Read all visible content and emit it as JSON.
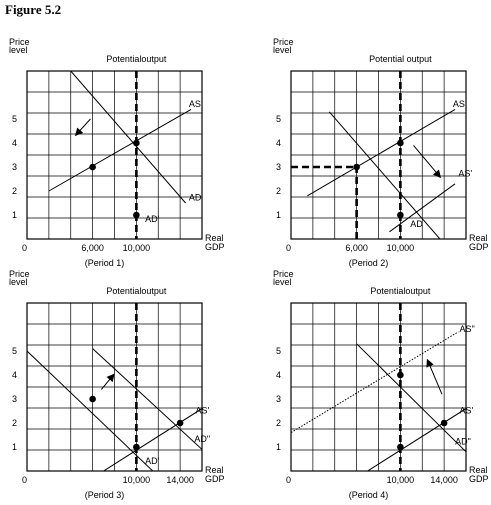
{
  "figure_title": "Figure 5.2",
  "chart_data": [
    {
      "type": "line",
      "caption": "(Period 1)",
      "potential_output_label": "Potentialoutput",
      "ylabel": [
        "Price",
        "level"
      ],
      "xlabel": [
        "Real",
        "GDP"
      ],
      "xlim": [
        0,
        16000
      ],
      "ylim": [
        0,
        7
      ],
      "y_ticks": [
        1,
        2,
        3,
        4,
        5
      ],
      "x_ticks": [
        {
          "value": 0,
          "label": "0"
        },
        {
          "value": 6000,
          "label": "6,000"
        },
        {
          "value": 10000,
          "label": "10,000"
        }
      ],
      "grid": true,
      "potential_output": 10000,
      "series": [
        {
          "name": "AS",
          "x": [
            2000,
            15000
          ],
          "y": [
            2,
            5.4
          ],
          "label_at": [
            14800,
            5.5
          ],
          "style": "solid"
        },
        {
          "name": "AD",
          "x": [
            4000,
            14500
          ],
          "y": [
            7,
            1.5
          ],
          "label_at": [
            14800,
            1.6
          ],
          "style": "solid"
        }
      ],
      "points": [
        {
          "x": 6000,
          "y": 3
        },
        {
          "x": 10000,
          "y": 4
        },
        {
          "x": 10000,
          "y": 1
        }
      ],
      "point_labels": [
        {
          "text": "AD'",
          "at": [
            10800,
            0.7
          ]
        }
      ],
      "guides": [],
      "arrows": [
        {
          "from": [
            5800,
            5.0
          ],
          "to": [
            4500,
            4.35
          ]
        }
      ]
    },
    {
      "type": "line",
      "caption": "(Period 2)",
      "potential_output_label": "Potential output",
      "ylabel": [
        "Price",
        "level"
      ],
      "xlabel": [
        "Real",
        "GDP"
      ],
      "xlim": [
        0,
        16000
      ],
      "ylim": [
        0,
        7
      ],
      "y_ticks": [
        1,
        2,
        3,
        4,
        5
      ],
      "x_ticks": [
        {
          "value": 0,
          "label": "0"
        },
        {
          "value": 6000,
          "label": "6,000"
        },
        {
          "value": 10000,
          "label": "10,000"
        }
      ],
      "grid": true,
      "potential_output": 10000,
      "series": [
        {
          "name": "AS",
          "x": [
            1500,
            15000
          ],
          "y": [
            1.8,
            5.4
          ],
          "label_at": [
            14800,
            5.5
          ],
          "style": "solid"
        },
        {
          "name": "AS'",
          "x": [
            9000,
            15000
          ],
          "y": [
            0.3,
            2.3
          ],
          "label_at": [
            15300,
            2.6
          ],
          "style": "solid"
        },
        {
          "name": "AD",
          "x": [
            3500,
            14000
          ],
          "y": [
            5.3,
            -0.2
          ],
          "label_at": [
            10900,
            0.5
          ],
          "style": "solid"
        }
      ],
      "points": [
        {
          "x": 6000,
          "y": 3
        },
        {
          "x": 10000,
          "y": 4
        },
        {
          "x": 10000,
          "y": 1
        }
      ],
      "point_labels": [],
      "guides": [
        {
          "from": [
            0,
            3
          ],
          "to": [
            6000,
            3
          ]
        },
        {
          "from": [
            6000,
            0
          ],
          "to": [
            6000,
            3
          ]
        }
      ],
      "arrows": [
        {
          "from": [
            11200,
            3.9
          ],
          "to": [
            13600,
            2.6
          ]
        }
      ]
    },
    {
      "type": "line",
      "caption": "(Period 3)",
      "potential_output_label": "Potentialoutput",
      "ylabel": [
        "Price",
        "level"
      ],
      "xlabel": [
        "Real",
        "GDP"
      ],
      "xlim": [
        0,
        16000
      ],
      "ylim": [
        0,
        7
      ],
      "y_ticks": [
        1,
        2,
        3,
        4,
        5
      ],
      "x_ticks": [
        {
          "value": 0,
          "label": "0"
        },
        {
          "value": 10000,
          "label": "10,000"
        },
        {
          "value": 14000,
          "label": "14,000"
        }
      ],
      "grid": true,
      "potential_output": 10000,
      "series": [
        {
          "name": "AS'",
          "x": [
            7000,
            16000
          ],
          "y": [
            0,
            2.6
          ],
          "label_at": [
            15400,
            2.4
          ],
          "style": "solid"
        },
        {
          "name": "AD\"",
          "x": [
            6000,
            16000
          ],
          "y": [
            5.1,
            0.9
          ],
          "label_at": [
            15300,
            1.2
          ],
          "style": "solid"
        },
        {
          "name": "",
          "x": [
            0,
            11500
          ],
          "y": [
            5,
            0
          ],
          "style": "solid"
        }
      ],
      "points": [
        {
          "x": 6000,
          "y": 3
        },
        {
          "x": 10000,
          "y": 1
        },
        {
          "x": 14000,
          "y": 2
        }
      ],
      "point_labels": [
        {
          "text": "AD'",
          "at": [
            10800,
            0.3
          ]
        }
      ],
      "guides": [],
      "arrows": [
        {
          "from": [
            6800,
            3.4
          ],
          "to": [
            7900,
            4.0
          ]
        }
      ]
    },
    {
      "type": "line",
      "caption": "(Period 4)",
      "potential_output_label": "Potentialoutput",
      "ylabel": [
        "Price",
        "level"
      ],
      "xlabel": [
        "Real",
        "GDP"
      ],
      "xlim": [
        0,
        16000
      ],
      "ylim": [
        0,
        7
      ],
      "y_ticks": [
        1,
        2,
        3,
        4,
        5
      ],
      "x_ticks": [
        {
          "value": 0,
          "label": "0"
        },
        {
          "value": 10000,
          "label": "10,000"
        },
        {
          "value": 14000,
          "label": "14,000"
        }
      ],
      "grid": true,
      "potential_output": 10000,
      "series": [
        {
          "name": "AS''",
          "x": [
            0,
            15300
          ],
          "y": [
            1.6,
            5.8
          ],
          "label_at": [
            15400,
            5.8
          ],
          "style": "dotted"
        },
        {
          "name": "AS'",
          "x": [
            7000,
            16000
          ],
          "y": [
            0,
            2.6
          ],
          "label_at": [
            15400,
            2.4
          ],
          "style": "solid"
        },
        {
          "name": "AD\"",
          "x": [
            6000,
            16000
          ],
          "y": [
            5.3,
            0.8
          ],
          "label_at": [
            15000,
            1.1
          ],
          "style": "solid"
        }
      ],
      "points": [
        {
          "x": 10000,
          "y": 4
        },
        {
          "x": 14000,
          "y": 2
        },
        {
          "x": 10000,
          "y": 1
        }
      ],
      "point_labels": [],
      "guides": [],
      "arrows": [
        {
          "from": [
            13800,
            3.2
          ],
          "to": [
            12500,
            4.6
          ]
        }
      ]
    }
  ]
}
